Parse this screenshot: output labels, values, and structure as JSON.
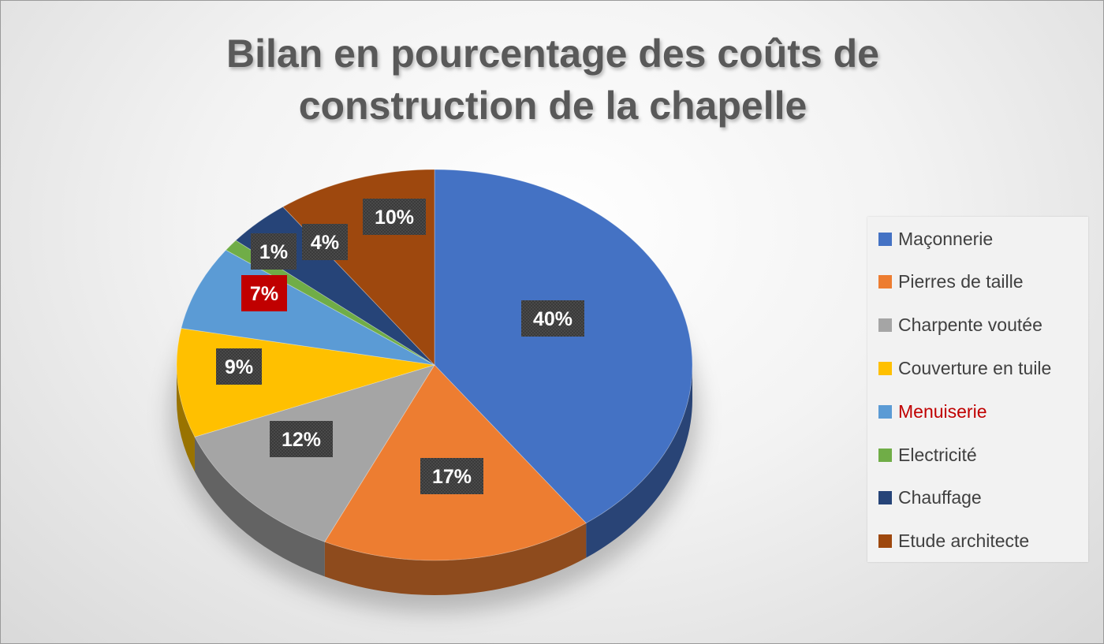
{
  "chart_data": {
    "type": "pie",
    "title_lines": [
      "Bilan en pourcentage des coûts de",
      "construction de la chapelle"
    ],
    "legend_position": "right",
    "categories": [
      "Maçonnerie",
      "Pierres de taille",
      "Charpente voutée",
      "Couverture en tuile",
      "Menuiserie",
      "Electricité",
      "Chauffage",
      "Etude architecte"
    ],
    "values": [
      40,
      17,
      12,
      9,
      7,
      1,
      4,
      10
    ],
    "labels": [
      "40%",
      "17%",
      "12%",
      "9%",
      "7%",
      "1%",
      "4%",
      "10%"
    ],
    "colors": [
      "#4472C4",
      "#ED7D31",
      "#A5A5A5",
      "#FFC000",
      "#5B9BD5",
      "#70AD47",
      "#264478",
      "#9E480E"
    ],
    "highlight": {
      "category": "Menuiserie",
      "label_color": "#C00000",
      "data_label_background": "#C00000"
    }
  }
}
